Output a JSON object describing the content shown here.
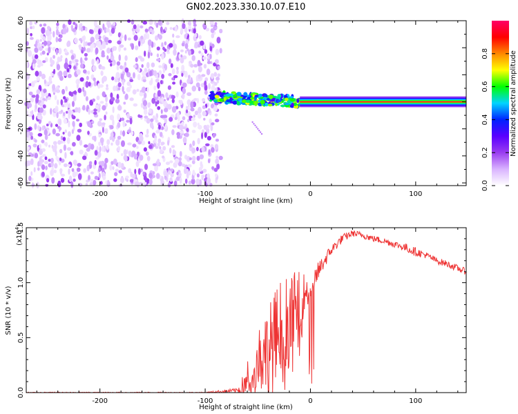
{
  "figure": {
    "title": "GN02.2023.330.10.07.E10"
  },
  "chart_data": [
    {
      "type": "heatmap",
      "xlabel": "Height of straight line (km)",
      "ylabel": "Frequency (Hz)",
      "xlim": [
        -270,
        148
      ],
      "ylim": [
        -62,
        60
      ],
      "xticks": [
        -200,
        -100,
        0,
        100
      ],
      "yticks": [
        -60,
        -40,
        -20,
        0,
        20,
        40,
        60
      ],
      "colorbar": {
        "label": "Normalized spectral amplitude",
        "range": [
          0.0,
          1.0
        ],
        "ticks": [
          0.0,
          0.2,
          0.4,
          0.6,
          0.8
        ],
        "colormap": [
          "#ffffff",
          "#d9b3ff",
          "#9a3cf0",
          "#5a00ff",
          "#0022ff",
          "#00d4ff",
          "#00ff00",
          "#ffff00",
          "#ff8800",
          "#ff0000",
          "#ff0066"
        ]
      },
      "regions": [
        {
          "x": [
            -270,
            -85
          ],
          "freq": [
            -62,
            60
          ],
          "amplitude": [
            0.05,
            0.2
          ],
          "description": "broadband noise"
        },
        {
          "x": [
            -95,
            -10
          ],
          "freq": [
            -5,
            8
          ],
          "amplitude": [
            0.3,
            0.7
          ]
        },
        {
          "x": [
            -10,
            148
          ],
          "freq": [
            -2,
            2
          ],
          "amplitude": [
            0.8,
            1.0
          ]
        },
        {
          "x": [
            -55,
            -45
          ],
          "freq": [
            -25,
            -15
          ],
          "amplitude": [
            0.1,
            0.2
          ]
        }
      ]
    },
    {
      "type": "line",
      "xlabel": "Height of straight line (km)",
      "ylabel": "SNR (10 * v/v)",
      "y_multiplier": "(x10",
      "y_multiplier_exp": "4",
      "y_multiplier_close": ")",
      "xlim": [
        -270,
        148
      ],
      "ylim": [
        0,
        1.5
      ],
      "xticks": [
        -200,
        -100,
        0,
        100
      ],
      "yticks": [
        0.0,
        0.5,
        1.0,
        1.5
      ],
      "series": [
        {
          "color": "#ee3333",
          "x": [
            -270,
            -200,
            -100,
            -70,
            -62,
            -55,
            -50,
            -45,
            -40,
            -35,
            -30,
            -25,
            -20,
            -15,
            -10,
            -5,
            0,
            10,
            20,
            30,
            40,
            50,
            60,
            70,
            80,
            90,
            100,
            110,
            120,
            130,
            140,
            148
          ],
          "y": [
            0.0,
            0.0,
            0.0,
            0.02,
            0.05,
            0.2,
            0.3,
            0.35,
            0.4,
            0.45,
            0.55,
            0.6,
            0.65,
            0.75,
            0.85,
            0.9,
            0.95,
            1.15,
            1.3,
            1.4,
            1.45,
            1.43,
            1.4,
            1.38,
            1.35,
            1.32,
            1.28,
            1.25,
            1.2,
            1.17,
            1.13,
            1.1
          ],
          "noise_amplitude": [
            0.005,
            0.005,
            0.005,
            0.02,
            0.15,
            0.3,
            0.35,
            0.35,
            0.4,
            0.45,
            0.5,
            0.5,
            0.4,
            0.35,
            0.25,
            0.2,
            0.12,
            0.08,
            0.05,
            0.04,
            0.03,
            0.03,
            0.03,
            0.03,
            0.03,
            0.04,
            0.04,
            0.03,
            0.03,
            0.03,
            0.03,
            0.03
          ]
        }
      ]
    }
  ]
}
